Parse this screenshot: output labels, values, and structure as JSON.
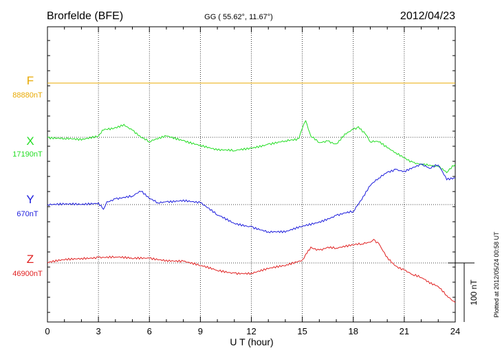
{
  "header": {
    "station": "Brorfelde (BFE)",
    "coords": "GG ( 55.62°,  11.67°)",
    "date": "2012/04/23"
  },
  "plotted_note": "Plotted at 2012/05/24 00:58 UT",
  "scale_label": "100 nT",
  "chart_data": {
    "type": "line",
    "xlabel": "U T (hour)",
    "xlim": [
      0,
      24
    ],
    "xticks": [
      "0",
      "3",
      "6",
      "9",
      "12",
      "15",
      "18",
      "21",
      "24"
    ],
    "ylabel": "",
    "scale_nT": 100,
    "grid": true,
    "series": [
      {
        "name": "F",
        "baseline": "88880nT",
        "color": "#e8a800",
        "x": [
          0,
          24
        ],
        "y": [
          0,
          0
        ]
      },
      {
        "name": "X",
        "baseline": "17190nT",
        "color": "#22dd22",
        "x": [
          0,
          1,
          2,
          3,
          3.3,
          4,
          4.5,
          5,
          5.5,
          6,
          6.5,
          7,
          8,
          9,
          10,
          11,
          12,
          13,
          14,
          14.8,
          15,
          15.2,
          15.5,
          16,
          16.5,
          17,
          17.5,
          18,
          18.3,
          18.7,
          19,
          19.5,
          20,
          20.5,
          21,
          21.5,
          22,
          22.5,
          23,
          23.5,
          24
        ],
        "y": [
          0,
          -2,
          -5,
          2,
          12,
          17,
          22,
          12,
          0,
          -8,
          -3,
          2,
          -5,
          -13,
          -22,
          -23,
          -18,
          -11,
          -6,
          -2,
          15,
          28,
          2,
          -9,
          -6,
          -11,
          6,
          14,
          18,
          6,
          -8,
          -8,
          -18,
          -26,
          -34,
          -42,
          -45,
          -47,
          -50,
          -60,
          -46
        ]
      },
      {
        "name": "Y",
        "baseline": "670nT",
        "color": "#1a1adc",
        "x": [
          0,
          1,
          2,
          3,
          3.3,
          3.5,
          4,
          5,
          5.5,
          6,
          6.5,
          7,
          8,
          9,
          10,
          11,
          12,
          13,
          14,
          15,
          16,
          17,
          17.5,
          18,
          18.5,
          19,
          19.5,
          20,
          20.5,
          21,
          21.5,
          22,
          22.5,
          23,
          23.5,
          24
        ],
        "y": [
          0,
          0,
          0,
          3,
          -8,
          5,
          10,
          14,
          22,
          10,
          3,
          5,
          8,
          3,
          -18,
          -32,
          -37,
          -46,
          -47,
          -37,
          -29,
          -18,
          -14,
          -12,
          8,
          32,
          45,
          55,
          60,
          57,
          63,
          68,
          61,
          67,
          42,
          45
        ]
      },
      {
        "name": "Z",
        "baseline": "46900nT",
        "color": "#e02020",
        "x": [
          0,
          1,
          2,
          3,
          4,
          5,
          6,
          7,
          8,
          9,
          10,
          11,
          12,
          13,
          14,
          15,
          15.2,
          15.5,
          16,
          16.5,
          17,
          17.5,
          18,
          18.5,
          19,
          19.2,
          19.5,
          20,
          20.5,
          21,
          21.5,
          22,
          22.5,
          23,
          23.5,
          24
        ],
        "y": [
          0,
          5,
          8,
          10,
          10,
          7,
          8,
          5,
          3,
          -5,
          -13,
          -17,
          -17,
          -10,
          -5,
          5,
          15,
          27,
          22,
          27,
          25,
          27,
          30,
          32,
          35,
          40,
          33,
          10,
          -5,
          -12,
          -20,
          -25,
          -35,
          -40,
          -55,
          -67
        ]
      }
    ]
  }
}
